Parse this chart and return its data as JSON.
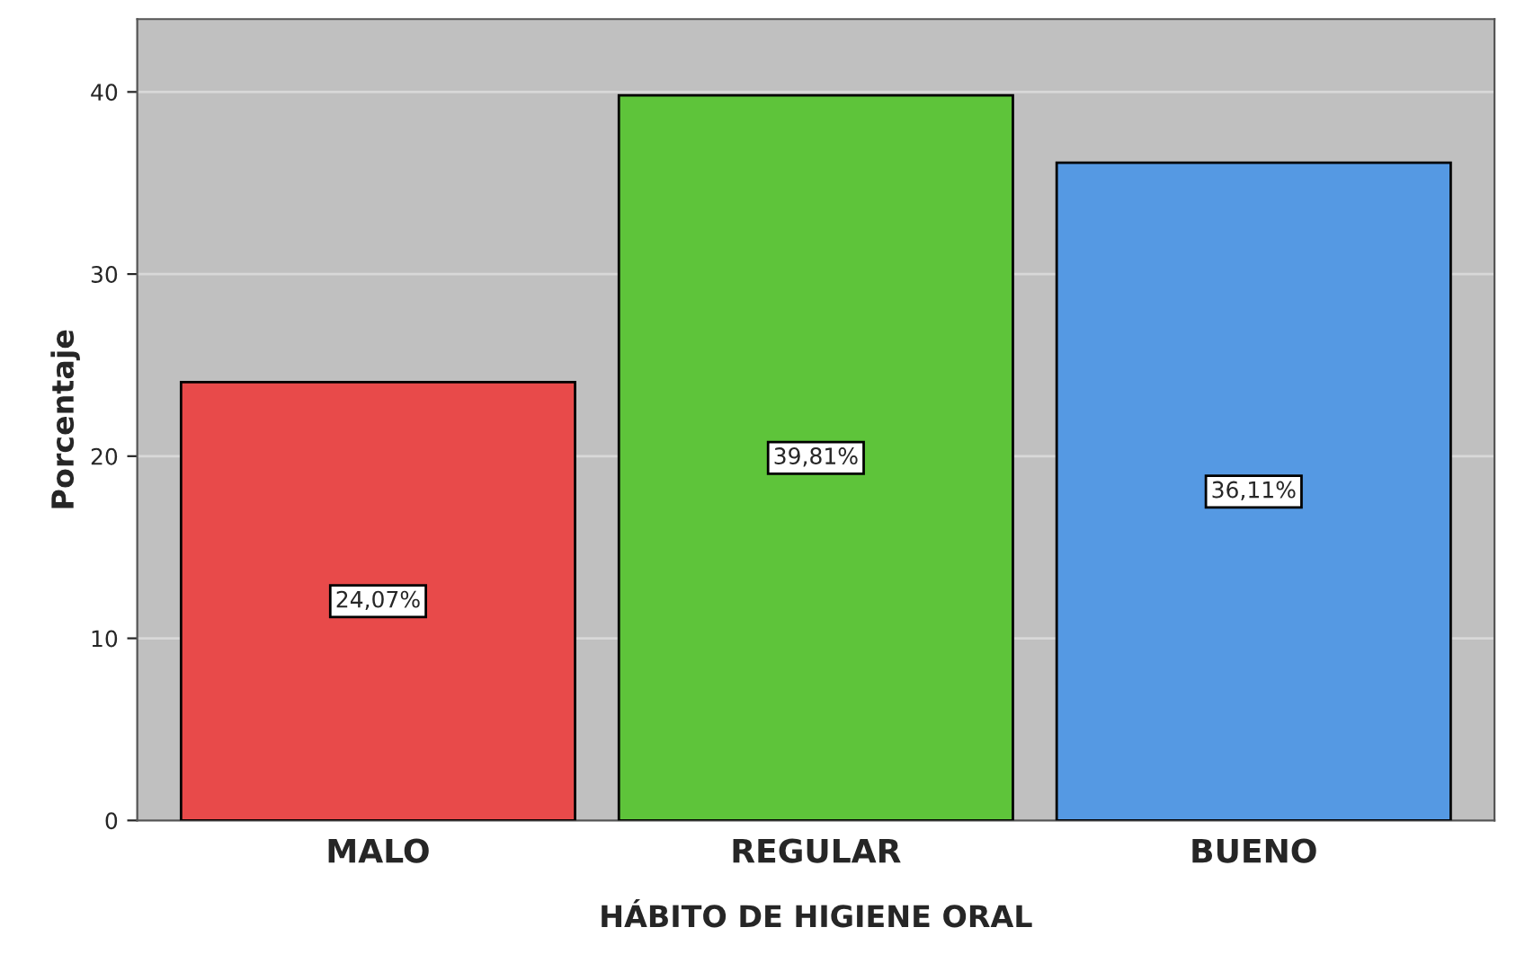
{
  "chart_data": {
    "type": "bar",
    "xlabel": "HÁBITO DE HIGIENE ORAL",
    "ylabel": "Porcentaje",
    "categories": [
      "MALO",
      "REGULAR",
      "BUENO"
    ],
    "values": [
      24.07,
      39.81,
      36.11
    ],
    "colors": [
      "#e84a4a",
      "#5ec43a",
      "#5599e3"
    ],
    "value_labels": [
      "24,07%",
      "39,81%",
      "36,11%"
    ],
    "ylim": [
      0,
      44
    ],
    "yticks": [
      0,
      10,
      20,
      30,
      40
    ],
    "grid": "y"
  }
}
